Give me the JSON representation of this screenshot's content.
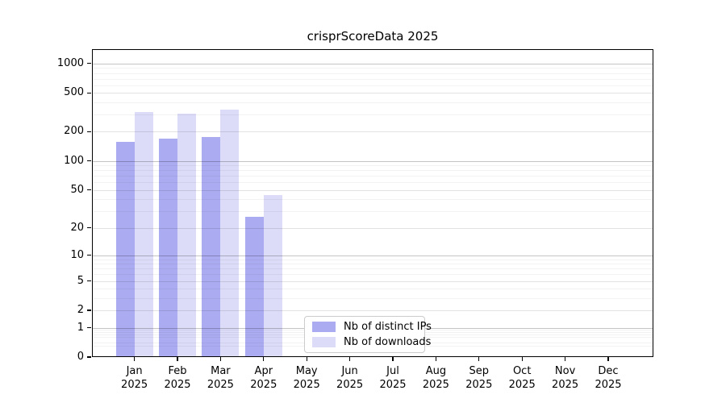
{
  "title": "crisprScoreData 2025",
  "chart_data": {
    "type": "bar",
    "title": "crisprScoreData 2025",
    "categories": [
      "Jan",
      "Feb",
      "Mar",
      "Apr",
      "May",
      "Jun",
      "Jul",
      "Aug",
      "Sep",
      "Oct",
      "Nov",
      "Dec"
    ],
    "category_year": "2025",
    "series": [
      {
        "name": "Nb of distinct IPs",
        "color": "#ababf2",
        "values": [
          158,
          170,
          176,
          26,
          0,
          0,
          0,
          0,
          0,
          0,
          0,
          0
        ]
      },
      {
        "name": "Nb of downloads",
        "color": "#dcdcf8",
        "values": [
          320,
          305,
          340,
          44,
          0,
          0,
          0,
          0,
          0,
          0,
          0,
          0
        ]
      }
    ],
    "y_scale": "log10(value+1)",
    "y_ticks": [
      0,
      1,
      2,
      5,
      10,
      20,
      50,
      100,
      200,
      500,
      1000
    ],
    "ylim": [
      0,
      1400
    ],
    "xlabel": "",
    "ylabel": "",
    "grid": true,
    "legend_position": "lower center"
  }
}
